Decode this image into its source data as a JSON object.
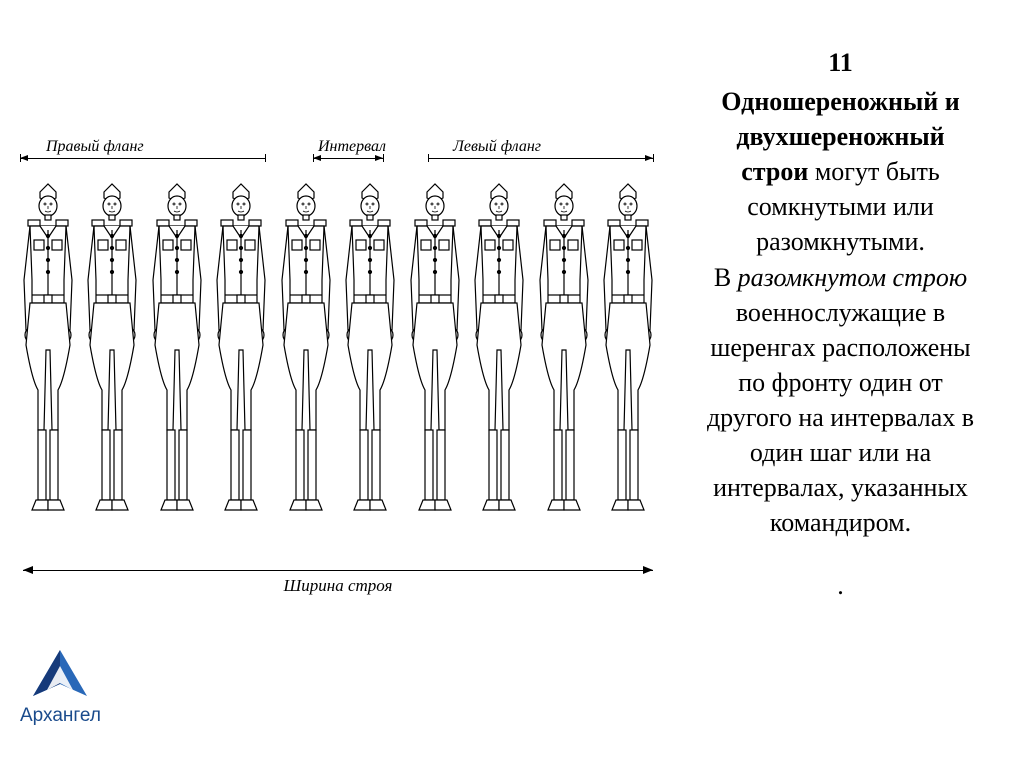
{
  "slide_number": "11",
  "title_bold_1": "Одношереножный и",
  "title_bold_2": "двухшереножный",
  "title_bold_3_part": "строи",
  "title_normal_3_part": " могут быть",
  "line4": "сомкнутыми или",
  "line5": "разомкнутыми.",
  "line6_pre": "В ",
  "line6_italic": "разомкнутом строю",
  "line7": "военнослужащие в",
  "line8": "шеренгах расположены",
  "line9": "по фронту один от",
  "line10": "другого на интервалах в",
  "line11": "один шаг или на",
  "line12": "интервалах, указанных",
  "line13": "командиром.",
  "period": ".",
  "diagram": {
    "label_right_flank": "Правый фланг",
    "label_interval": "Интервал",
    "label_left_flank": "Левый фланг",
    "label_width": "Ширина строя",
    "soldier_count": 10,
    "colors": {
      "line": "#000000",
      "text": "#000000"
    }
  },
  "logo": {
    "text": "Архангел",
    "triangle_color": "#2968b8",
    "triangle_shadow": "#163a7a"
  }
}
